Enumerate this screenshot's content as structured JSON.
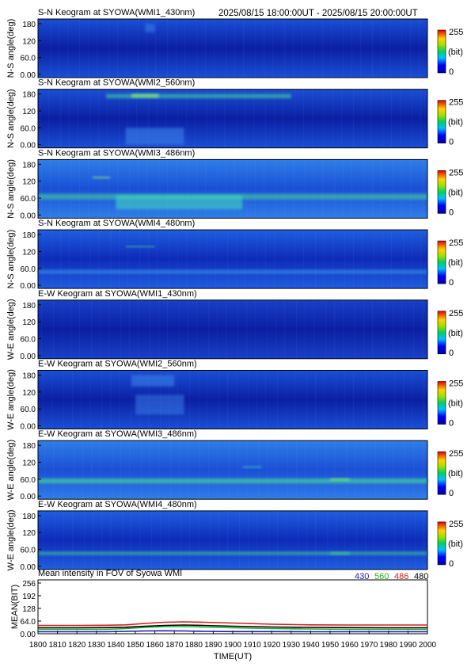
{
  "header": {
    "time_range": "2025/08/15 18:00:00UT - 2025/08/15 20:00:00UT"
  },
  "chart_data": [
    {
      "type": "heatmap",
      "title": "S-N Keogram at SYOWA(WMI1_430nm)",
      "ylabel": "N-S angle(deg)",
      "y_ticks": [
        "180",
        "120",
        "60.0",
        "0.00"
      ],
      "colorbar": {
        "max_label": "255",
        "unit": "(bit)",
        "min_label": "0"
      },
      "colors": {
        "base": "#0a1fa2",
        "mid": "#1a4fd6",
        "glow": "#3a82ea"
      },
      "features": [
        {
          "t": [
            1855,
            1860
          ],
          "angle": [
            150,
            180
          ],
          "level": 0.35
        }
      ]
    },
    {
      "type": "heatmap",
      "title": "S-N Keogram at SYOWA(WMI2_560nm)",
      "ylabel": "N-S angle(deg)",
      "y_ticks": [
        "180",
        "120",
        "60.0",
        "0.00"
      ],
      "colorbar": {
        "max_label": "255",
        "unit": "(bit)",
        "min_label": "0"
      },
      "colors": {
        "base": "#0a1fa2",
        "mid": "#1a4fd6",
        "glow": "#3a82ea"
      },
      "features": [
        {
          "t": [
            1835,
            1930
          ],
          "angle": [
            165,
            180
          ],
          "level": 0.6
        },
        {
          "t": [
            1848,
            1862
          ],
          "angle": [
            168,
            180
          ],
          "level": 0.95
        },
        {
          "t": [
            1845,
            1875
          ],
          "angle": [
            0,
            60
          ],
          "level": 0.45
        }
      ]
    },
    {
      "type": "heatmap",
      "title": "S-N Keogram at SYOWA(WMI3_486nm)",
      "ylabel": "N-S angle(deg)",
      "y_ticks": [
        "180",
        "120",
        "60.0",
        "0.00"
      ],
      "colorbar": {
        "max_label": "255",
        "unit": "(bit)",
        "min_label": "0"
      },
      "colors": {
        "base": "#1a4fd6",
        "mid": "#2f7ee8",
        "glow": "#3fd0c0"
      },
      "features": [
        {
          "t": [
            1800,
            2000
          ],
          "angle": [
            55,
            75
          ],
          "level": 0.55
        },
        {
          "t": [
            1828,
            1837
          ],
          "angle": [
            130,
            136
          ],
          "level": 0.9
        },
        {
          "t": [
            1840,
            1905
          ],
          "angle": [
            20,
            70
          ],
          "level": 0.5
        }
      ]
    },
    {
      "type": "heatmap",
      "title": "S-N Keogram at SYOWA(WMI4_480nm)",
      "ylabel": "N-S angle(deg)",
      "y_ticks": [
        "180",
        "120",
        "60.0",
        "0.00"
      ],
      "colorbar": {
        "max_label": "255",
        "unit": "(bit)",
        "min_label": "0"
      },
      "colors": {
        "base": "#0d2bb8",
        "mid": "#1f5ee0",
        "glow": "#3a9ae6"
      },
      "features": [
        {
          "t": [
            1800,
            2000
          ],
          "angle": [
            40,
            55
          ],
          "level": 0.4
        },
        {
          "t": [
            1845,
            1860
          ],
          "angle": [
            135,
            140
          ],
          "level": 0.6
        }
      ]
    },
    {
      "type": "heatmap",
      "title": "E-W Keogram at SYOWA(WMI1_430nm)",
      "ylabel": "W-E angle(deg)",
      "y_ticks": [
        "180",
        "120",
        "60.0",
        "0.00"
      ],
      "colorbar": {
        "max_label": "255",
        "unit": "(bit)",
        "min_label": "0"
      },
      "colors": {
        "base": "#0a1fa2",
        "mid": "#1840c8",
        "glow": "#2d70de"
      },
      "features": []
    },
    {
      "type": "heatmap",
      "title": "E-W Keogram at SYOWA(WMI2_560nm)",
      "ylabel": "W-E angle(deg)",
      "y_ticks": [
        "180",
        "120",
        "60.0",
        "0.00"
      ],
      "colorbar": {
        "max_label": "255",
        "unit": "(bit)",
        "min_label": "0"
      },
      "colors": {
        "base": "#0a1fa2",
        "mid": "#1a4fd6",
        "glow": "#3a82ea"
      },
      "features": [
        {
          "t": [
            1848,
            1870
          ],
          "angle": [
            140,
            180
          ],
          "level": 0.45
        },
        {
          "t": [
            1850,
            1875
          ],
          "angle": [
            40,
            110
          ],
          "level": 0.3
        }
      ]
    },
    {
      "type": "heatmap",
      "title": "E-W Keogram at SYOWA(WMI3_486nm)",
      "ylabel": "W-E angle(deg)",
      "y_ticks": [
        "180",
        "120",
        "60.0",
        "0.00"
      ],
      "colorbar": {
        "max_label": "255",
        "unit": "(bit)",
        "min_label": "0"
      },
      "colors": {
        "base": "#1a4fd6",
        "mid": "#2f7ee8",
        "glow": "#3fd0c0"
      },
      "features": [
        {
          "t": [
            1800,
            2000
          ],
          "angle": [
            45,
            62
          ],
          "level": 0.8
        },
        {
          "t": [
            1905,
            1915
          ],
          "angle": [
            100,
            106
          ],
          "level": 0.5
        },
        {
          "t": [
            1950,
            1960
          ],
          "angle": [
            55,
            62
          ],
          "level": 0.9
        }
      ]
    },
    {
      "type": "heatmap",
      "title": "E-W Keogram at SYOWA(WMI4_480nm)",
      "ylabel": "W-E angle(deg)",
      "y_ticks": [
        "180",
        "120",
        "60.0",
        "0.00"
      ],
      "colorbar": {
        "max_label": "255",
        "unit": "(bit)",
        "min_label": "0"
      },
      "colors": {
        "base": "#0d2bb8",
        "mid": "#1f5ee0",
        "glow": "#3a9ae6"
      },
      "features": [
        {
          "t": [
            1800,
            2000
          ],
          "angle": [
            40,
            52
          ],
          "level": 0.55
        },
        {
          "t": [
            1950,
            1960
          ],
          "angle": [
            42,
            50
          ],
          "level": 0.8
        }
      ]
    },
    {
      "type": "line",
      "title": "Mean intensity in FOV of Syowa WMI",
      "xlabel": "TIME(UT)",
      "ylabel": "MEAN(BIT)",
      "xlim": [
        1800,
        2000
      ],
      "ylim": [
        0,
        256
      ],
      "x_ticks": [
        "1800",
        "1810",
        "1820",
        "1830",
        "1840",
        "1850",
        "1860",
        "1870",
        "1880",
        "1890",
        "1900",
        "1910",
        "1920",
        "1930",
        "1940",
        "1950",
        "1960",
        "1970",
        "1980",
        "1990",
        "2000"
      ],
      "y_ticks": [
        "256",
        "192",
        "128",
        "64.0",
        "0.00"
      ],
      "legend_position": "top-right",
      "legend": [
        {
          "label": "430",
          "color": "#1a1ab4"
        },
        {
          "label": "560",
          "color": "#22b022"
        },
        {
          "label": "486",
          "color": "#d42020"
        },
        {
          "label": "480",
          "color": "#000000"
        }
      ],
      "x": [
        1800,
        1820,
        1835,
        1845,
        1855,
        1865,
        1875,
        1885,
        1900,
        1920,
        1940,
        1960,
        1980,
        2000
      ],
      "series": [
        {
          "name": "430",
          "color": "#1a1ab4",
          "values": [
            10,
            10,
            10,
            12,
            14,
            15,
            14,
            12,
            11,
            11,
            10,
            10,
            10,
            10
          ]
        },
        {
          "name": "560",
          "color": "#22b022",
          "values": [
            22,
            22,
            22,
            26,
            32,
            36,
            36,
            34,
            30,
            26,
            24,
            22,
            22,
            22
          ]
        },
        {
          "name": "486",
          "color": "#d42020",
          "values": [
            42,
            42,
            43,
            45,
            52,
            58,
            60,
            58,
            54,
            48,
            45,
            44,
            44,
            44
          ]
        },
        {
          "name": "480",
          "color": "#000000",
          "values": [
            30,
            30,
            31,
            33,
            38,
            42,
            44,
            42,
            38,
            34,
            32,
            31,
            30,
            30
          ]
        }
      ]
    }
  ]
}
